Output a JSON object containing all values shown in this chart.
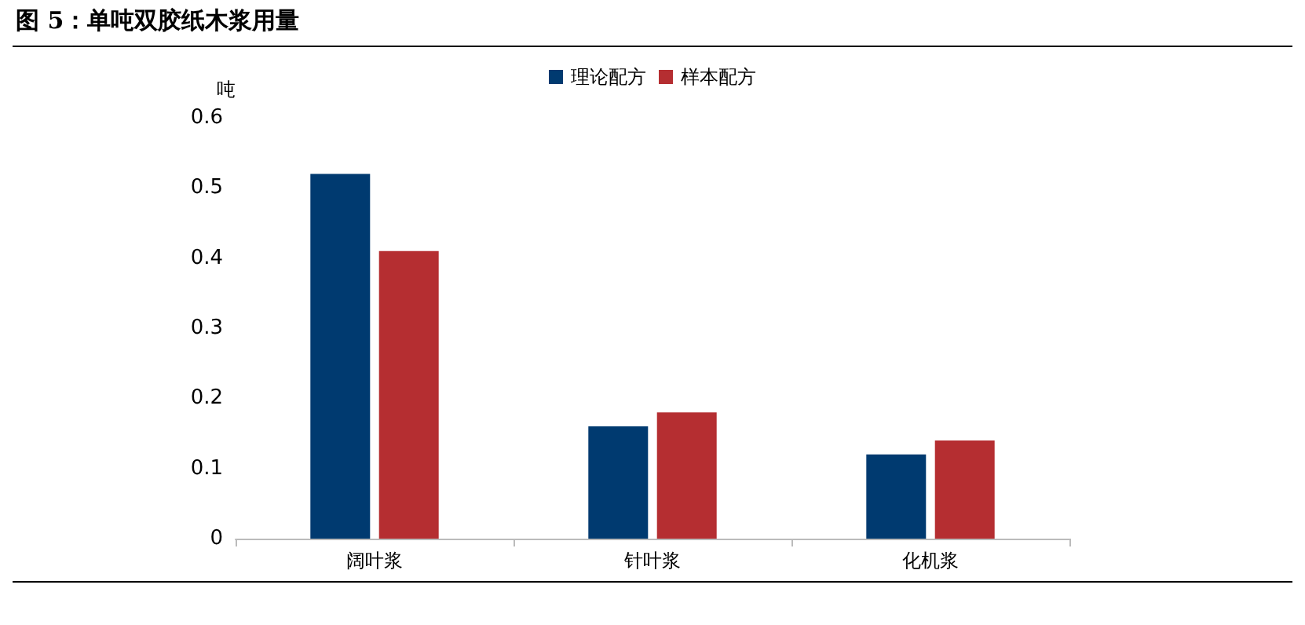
{
  "chart_data": {
    "type": "bar",
    "title": "图 5：单吨双胶纸木浆用量",
    "ylabel": "吨",
    "categories": [
      "阔叶浆",
      "针叶浆",
      "化机浆"
    ],
    "series": [
      {
        "name": "理论配方",
        "color": "#003a70",
        "values": [
          0.52,
          0.16,
          0.12
        ]
      },
      {
        "name": "样本配方",
        "color": "#b52e31",
        "values": [
          0.41,
          0.18,
          0.14
        ]
      }
    ],
    "ylim": [
      0,
      0.6
    ],
    "yticks": [
      0,
      0.1,
      0.2,
      0.3,
      0.4,
      0.5,
      0.6
    ],
    "grid": false,
    "legend": "top"
  }
}
